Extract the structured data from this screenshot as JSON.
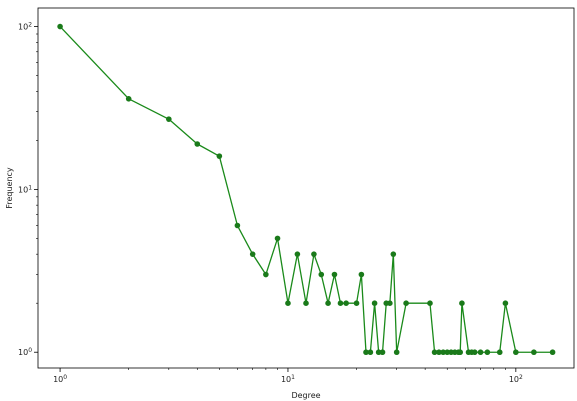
{
  "chart_data": {
    "type": "line",
    "title": "",
    "xlabel": "Degree",
    "ylabel": "Frequency",
    "xscale": "log",
    "yscale": "log",
    "xlim": [
      0.8,
      180
    ],
    "ylim": [
      0.8,
      130
    ],
    "grid": false,
    "line_color": "#1a8a1a",
    "marker_color": "#1a7a1a",
    "x_ticks": [
      {
        "value": 1,
        "base": "10",
        "exp": "0"
      },
      {
        "value": 10,
        "base": "10",
        "exp": "1"
      },
      {
        "value": 100,
        "base": "10",
        "exp": "2"
      }
    ],
    "y_ticks": [
      {
        "value": 1,
        "base": "10",
        "exp": "0"
      },
      {
        "value": 10,
        "base": "10",
        "exp": "1"
      },
      {
        "value": 100,
        "base": "10",
        "exp": "2"
      }
    ],
    "series": [
      {
        "x": [
          1,
          2,
          3,
          4,
          5,
          6,
          7,
          8,
          9,
          10,
          11,
          12,
          13,
          14,
          15,
          16,
          17,
          18,
          20,
          21,
          22,
          23,
          24,
          25,
          26,
          27,
          28,
          29,
          30,
          33,
          42,
          44,
          46,
          48,
          50,
          52,
          54,
          56,
          57,
          58,
          62,
          64,
          66,
          70,
          75,
          85,
          90,
          100,
          120,
          145
        ],
        "y": [
          100,
          36,
          27,
          19,
          16,
          6,
          4,
          3,
          5,
          2,
          4,
          2,
          4,
          3,
          2,
          3,
          2,
          2,
          2,
          3,
          1,
          1,
          2,
          1,
          1,
          2,
          2,
          4,
          1,
          2,
          2,
          1,
          1,
          1,
          1,
          1,
          1,
          1,
          1,
          2,
          1,
          1,
          1,
          1,
          1,
          1,
          2,
          1,
          1,
          1
        ]
      }
    ]
  }
}
